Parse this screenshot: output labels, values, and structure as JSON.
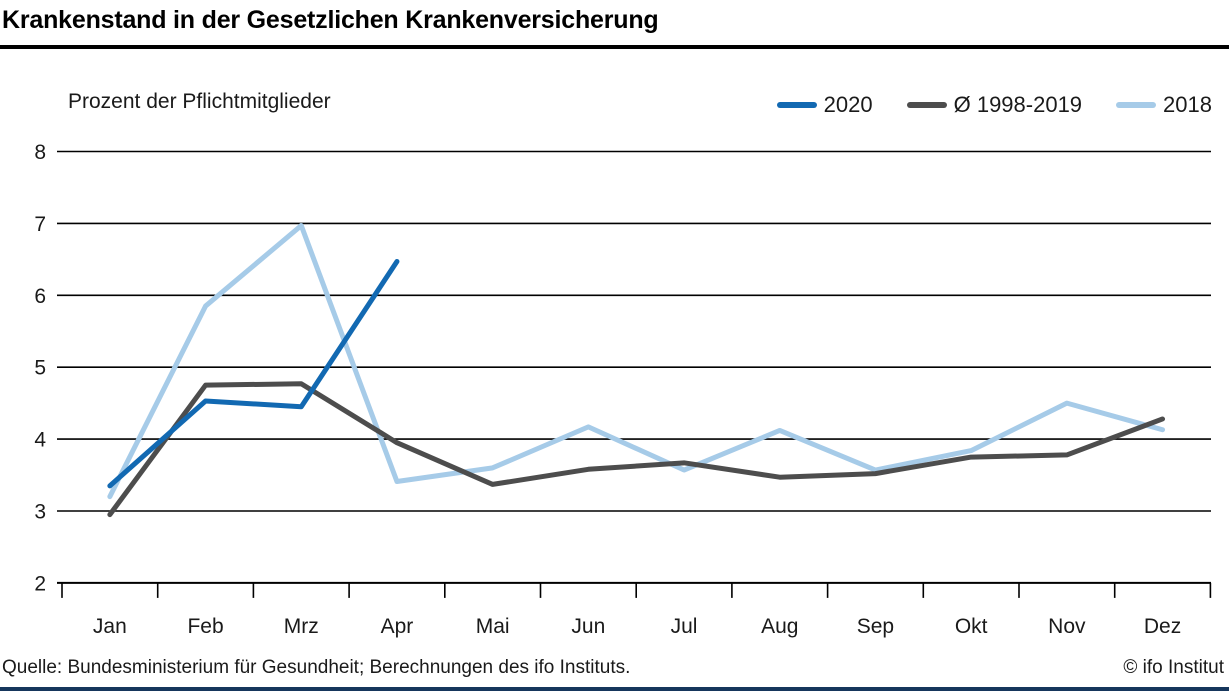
{
  "header": {
    "title": "Krankenstand in der Gesetzlichen Krankenversicherung"
  },
  "chart_data": {
    "type": "line",
    "title": "Krankenstand in der Gesetzlichen Krankenversicherung",
    "subtitle": "Prozent der Pflichtmitglieder",
    "categories": [
      "Jan",
      "Feb",
      "Mrz",
      "Apr",
      "Mai",
      "Jun",
      "Jul",
      "Aug",
      "Sep",
      "Okt",
      "Nov",
      "Dez"
    ],
    "series": [
      {
        "name": "2020",
        "color": "#1269b2",
        "values": [
          3.35,
          4.53,
          4.45,
          6.47,
          null,
          null,
          null,
          null,
          null,
          null,
          null,
          null
        ]
      },
      {
        "name": "Ø 1998-2019",
        "color": "#4d4d4d",
        "values": [
          2.95,
          4.75,
          4.77,
          3.95,
          3.37,
          3.58,
          3.67,
          3.47,
          3.52,
          3.75,
          3.78,
          4.28
        ]
      },
      {
        "name": "2018",
        "color": "#a6cbe8",
        "values": [
          3.2,
          5.85,
          6.97,
          3.41,
          3.6,
          4.17,
          3.57,
          4.12,
          3.57,
          3.84,
          4.5,
          4.13
        ]
      }
    ],
    "ylim": [
      2,
      8
    ],
    "yticks": [
      2,
      3,
      4,
      5,
      6,
      7,
      8
    ],
    "grid": true,
    "legend_position": "top-right"
  },
  "footer": {
    "source": "Quelle: Bundesministerium für Gesundheit; Berechnungen des ifo Instituts.",
    "copyright": "© ifo Institut"
  },
  "colors": {
    "accent_bar": "#16365c",
    "grid": "#000000",
    "text": "#1a1a1a"
  }
}
